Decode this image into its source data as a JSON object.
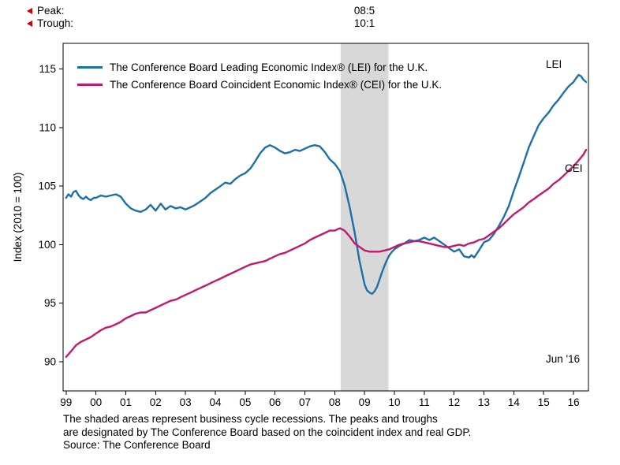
{
  "header": {
    "peak_label": "Peak:",
    "trough_label": "Trough:",
    "peak_date": "08:5",
    "trough_date": "10:1"
  },
  "legend": {
    "lei": "The Conference Board Leading Economic Index® (LEI) for the U.K.",
    "cei": "The Conference Board Coincident Economic Index® (CEI) for the U.K."
  },
  "annotations": {
    "lei": "LEI",
    "cei": "CEI",
    "last_point": "Jun '16"
  },
  "footnote": {
    "line1": "The shaded areas represent business cycle recessions. The peaks and troughs",
    "line2": "are designated by The Conference Board based on the coincident index and real GDP.",
    "line3": "Source: The Conference Board"
  },
  "chart_data": {
    "type": "line",
    "title": "",
    "ylabel": "Index (2010 = 100)",
    "xlim": [
      1998.9,
      2016.5
    ],
    "ylim": [
      87.5,
      117.2
    ],
    "y_ticks": [
      90,
      95,
      100,
      105,
      110,
      115
    ],
    "x_tick_values": [
      1999,
      2000,
      2001,
      2002,
      2003,
      2004,
      2005,
      2006,
      2007,
      2008,
      2009,
      2010,
      2011,
      2012,
      2013,
      2014,
      2015,
      2016
    ],
    "x_tick_labels": [
      "99",
      "00",
      "01",
      "02",
      "03",
      "04",
      "05",
      "06",
      "07",
      "08",
      "09",
      "10",
      "11",
      "12",
      "13",
      "14",
      "15",
      "16"
    ],
    "recession_bands": [
      [
        2008.2,
        2009.8
      ]
    ],
    "recession_color": "#d8d8d8",
    "axis_color": "#000000",
    "series": [
      {
        "name": "LEI",
        "color": "#1c70a8",
        "points": [
          [
            1999.0,
            104.0
          ],
          [
            1999.08,
            104.3
          ],
          [
            1999.17,
            104.1
          ],
          [
            1999.25,
            104.5
          ],
          [
            1999.33,
            104.6
          ],
          [
            1999.42,
            104.2
          ],
          [
            1999.5,
            104.0
          ],
          [
            1999.58,
            103.9
          ],
          [
            1999.67,
            104.1
          ],
          [
            1999.75,
            103.9
          ],
          [
            1999.83,
            103.8
          ],
          [
            1999.92,
            104.0
          ],
          [
            2000.0,
            104.0
          ],
          [
            2000.17,
            104.2
          ],
          [
            2000.33,
            104.1
          ],
          [
            2000.5,
            104.2
          ],
          [
            2000.67,
            104.3
          ],
          [
            2000.83,
            104.1
          ],
          [
            2001.0,
            103.5
          ],
          [
            2001.17,
            103.1
          ],
          [
            2001.33,
            102.9
          ],
          [
            2001.5,
            102.8
          ],
          [
            2001.67,
            103.0
          ],
          [
            2001.83,
            103.4
          ],
          [
            2002.0,
            102.9
          ],
          [
            2002.17,
            103.5
          ],
          [
            2002.33,
            103.0
          ],
          [
            2002.5,
            103.3
          ],
          [
            2002.67,
            103.1
          ],
          [
            2002.83,
            103.2
          ],
          [
            2003.0,
            103.0
          ],
          [
            2003.17,
            103.2
          ],
          [
            2003.33,
            103.4
          ],
          [
            2003.5,
            103.7
          ],
          [
            2003.67,
            104.0
          ],
          [
            2003.83,
            104.4
          ],
          [
            2004.0,
            104.7
          ],
          [
            2004.17,
            105.0
          ],
          [
            2004.33,
            105.3
          ],
          [
            2004.5,
            105.2
          ],
          [
            2004.67,
            105.6
          ],
          [
            2004.83,
            105.9
          ],
          [
            2005.0,
            106.1
          ],
          [
            2005.17,
            106.5
          ],
          [
            2005.33,
            107.1
          ],
          [
            2005.5,
            107.8
          ],
          [
            2005.67,
            108.3
          ],
          [
            2005.83,
            108.5
          ],
          [
            2006.0,
            108.3
          ],
          [
            2006.17,
            108.0
          ],
          [
            2006.33,
            107.8
          ],
          [
            2006.5,
            107.9
          ],
          [
            2006.67,
            108.1
          ],
          [
            2006.83,
            108.0
          ],
          [
            2007.0,
            108.2
          ],
          [
            2007.17,
            108.4
          ],
          [
            2007.33,
            108.5
          ],
          [
            2007.5,
            108.4
          ],
          [
            2007.67,
            107.9
          ],
          [
            2007.83,
            107.3
          ],
          [
            2008.0,
            106.9
          ],
          [
            2008.17,
            106.3
          ],
          [
            2008.33,
            105.1
          ],
          [
            2008.5,
            103.2
          ],
          [
            2008.67,
            101.0
          ],
          [
            2008.83,
            98.6
          ],
          [
            2009.0,
            96.6
          ],
          [
            2009.08,
            96.1
          ],
          [
            2009.17,
            95.9
          ],
          [
            2009.25,
            95.8
          ],
          [
            2009.33,
            96.0
          ],
          [
            2009.42,
            96.4
          ],
          [
            2009.5,
            97.0
          ],
          [
            2009.58,
            97.6
          ],
          [
            2009.67,
            98.2
          ],
          [
            2009.75,
            98.7
          ],
          [
            2009.83,
            99.1
          ],
          [
            2009.92,
            99.4
          ],
          [
            2010.0,
            99.6
          ],
          [
            2010.17,
            99.9
          ],
          [
            2010.33,
            100.1
          ],
          [
            2010.5,
            100.4
          ],
          [
            2010.67,
            100.3
          ],
          [
            2010.83,
            100.4
          ],
          [
            2011.0,
            100.6
          ],
          [
            2011.17,
            100.4
          ],
          [
            2011.33,
            100.6
          ],
          [
            2011.5,
            100.3
          ],
          [
            2011.67,
            100.0
          ],
          [
            2011.83,
            99.7
          ],
          [
            2012.0,
            99.4
          ],
          [
            2012.17,
            99.6
          ],
          [
            2012.33,
            99.0
          ],
          [
            2012.5,
            98.9
          ],
          [
            2012.58,
            99.1
          ],
          [
            2012.67,
            98.9
          ],
          [
            2012.83,
            99.5
          ],
          [
            2013.0,
            100.2
          ],
          [
            2013.17,
            100.4
          ],
          [
            2013.33,
            100.9
          ],
          [
            2013.5,
            101.6
          ],
          [
            2013.67,
            102.4
          ],
          [
            2013.83,
            103.3
          ],
          [
            2014.0,
            104.6
          ],
          [
            2014.17,
            105.8
          ],
          [
            2014.33,
            107.0
          ],
          [
            2014.5,
            108.3
          ],
          [
            2014.67,
            109.3
          ],
          [
            2014.83,
            110.2
          ],
          [
            2015.0,
            110.8
          ],
          [
            2015.17,
            111.3
          ],
          [
            2015.33,
            111.9
          ],
          [
            2015.5,
            112.4
          ],
          [
            2015.67,
            113.0
          ],
          [
            2015.83,
            113.5
          ],
          [
            2016.0,
            113.9
          ],
          [
            2016.08,
            114.2
          ],
          [
            2016.17,
            114.5
          ],
          [
            2016.25,
            114.4
          ],
          [
            2016.33,
            114.1
          ],
          [
            2016.42,
            113.9
          ]
        ]
      },
      {
        "name": "CEI",
        "color": "#c4186e",
        "points": [
          [
            1999.0,
            90.4
          ],
          [
            1999.17,
            90.9
          ],
          [
            1999.33,
            91.4
          ],
          [
            1999.5,
            91.7
          ],
          [
            1999.67,
            91.9
          ],
          [
            1999.83,
            92.1
          ],
          [
            2000.0,
            92.4
          ],
          [
            2000.17,
            92.7
          ],
          [
            2000.33,
            92.9
          ],
          [
            2000.5,
            93.0
          ],
          [
            2000.67,
            93.2
          ],
          [
            2000.83,
            93.4
          ],
          [
            2001.0,
            93.7
          ],
          [
            2001.17,
            93.9
          ],
          [
            2001.33,
            94.1
          ],
          [
            2001.5,
            94.2
          ],
          [
            2001.67,
            94.2
          ],
          [
            2001.83,
            94.4
          ],
          [
            2002.0,
            94.6
          ],
          [
            2002.17,
            94.8
          ],
          [
            2002.33,
            95.0
          ],
          [
            2002.5,
            95.2
          ],
          [
            2002.67,
            95.3
          ],
          [
            2002.83,
            95.5
          ],
          [
            2003.0,
            95.7
          ],
          [
            2003.17,
            95.9
          ],
          [
            2003.33,
            96.1
          ],
          [
            2003.5,
            96.3
          ],
          [
            2003.67,
            96.5
          ],
          [
            2003.83,
            96.7
          ],
          [
            2004.0,
            96.9
          ],
          [
            2004.17,
            97.1
          ],
          [
            2004.33,
            97.3
          ],
          [
            2004.5,
            97.5
          ],
          [
            2004.67,
            97.7
          ],
          [
            2004.83,
            97.9
          ],
          [
            2005.0,
            98.1
          ],
          [
            2005.17,
            98.3
          ],
          [
            2005.33,
            98.4
          ],
          [
            2005.5,
            98.5
          ],
          [
            2005.67,
            98.6
          ],
          [
            2005.83,
            98.8
          ],
          [
            2006.0,
            99.0
          ],
          [
            2006.17,
            99.2
          ],
          [
            2006.33,
            99.3
          ],
          [
            2006.5,
            99.5
          ],
          [
            2006.67,
            99.7
          ],
          [
            2006.83,
            99.9
          ],
          [
            2007.0,
            100.1
          ],
          [
            2007.17,
            100.4
          ],
          [
            2007.33,
            100.6
          ],
          [
            2007.5,
            100.8
          ],
          [
            2007.67,
            101.0
          ],
          [
            2007.83,
            101.2
          ],
          [
            2008.0,
            101.2
          ],
          [
            2008.17,
            101.4
          ],
          [
            2008.33,
            101.2
          ],
          [
            2008.5,
            100.7
          ],
          [
            2008.67,
            100.1
          ],
          [
            2008.83,
            99.8
          ],
          [
            2009.0,
            99.5
          ],
          [
            2009.17,
            99.4
          ],
          [
            2009.33,
            99.4
          ],
          [
            2009.5,
            99.4
          ],
          [
            2009.67,
            99.5
          ],
          [
            2009.83,
            99.6
          ],
          [
            2010.0,
            99.8
          ],
          [
            2010.17,
            100.0
          ],
          [
            2010.33,
            100.1
          ],
          [
            2010.5,
            100.2
          ],
          [
            2010.67,
            100.3
          ],
          [
            2010.83,
            100.3
          ],
          [
            2011.0,
            100.2
          ],
          [
            2011.17,
            100.1
          ],
          [
            2011.33,
            100.0
          ],
          [
            2011.5,
            99.9
          ],
          [
            2011.67,
            99.8
          ],
          [
            2011.83,
            99.8
          ],
          [
            2012.0,
            99.9
          ],
          [
            2012.17,
            100.0
          ],
          [
            2012.33,
            99.9
          ],
          [
            2012.5,
            100.1
          ],
          [
            2012.67,
            100.2
          ],
          [
            2012.83,
            100.4
          ],
          [
            2013.0,
            100.5
          ],
          [
            2013.17,
            100.8
          ],
          [
            2013.33,
            101.1
          ],
          [
            2013.5,
            101.4
          ],
          [
            2013.67,
            101.8
          ],
          [
            2013.83,
            102.2
          ],
          [
            2014.0,
            102.6
          ],
          [
            2014.17,
            102.9
          ],
          [
            2014.33,
            103.2
          ],
          [
            2014.5,
            103.6
          ],
          [
            2014.67,
            103.9
          ],
          [
            2014.83,
            104.2
          ],
          [
            2015.0,
            104.5
          ],
          [
            2015.17,
            104.8
          ],
          [
            2015.33,
            105.2
          ],
          [
            2015.5,
            105.5
          ],
          [
            2015.67,
            105.9
          ],
          [
            2015.83,
            106.3
          ],
          [
            2016.0,
            106.7
          ],
          [
            2016.17,
            107.2
          ],
          [
            2016.33,
            107.7
          ],
          [
            2016.42,
            108.1
          ]
        ]
      }
    ]
  }
}
